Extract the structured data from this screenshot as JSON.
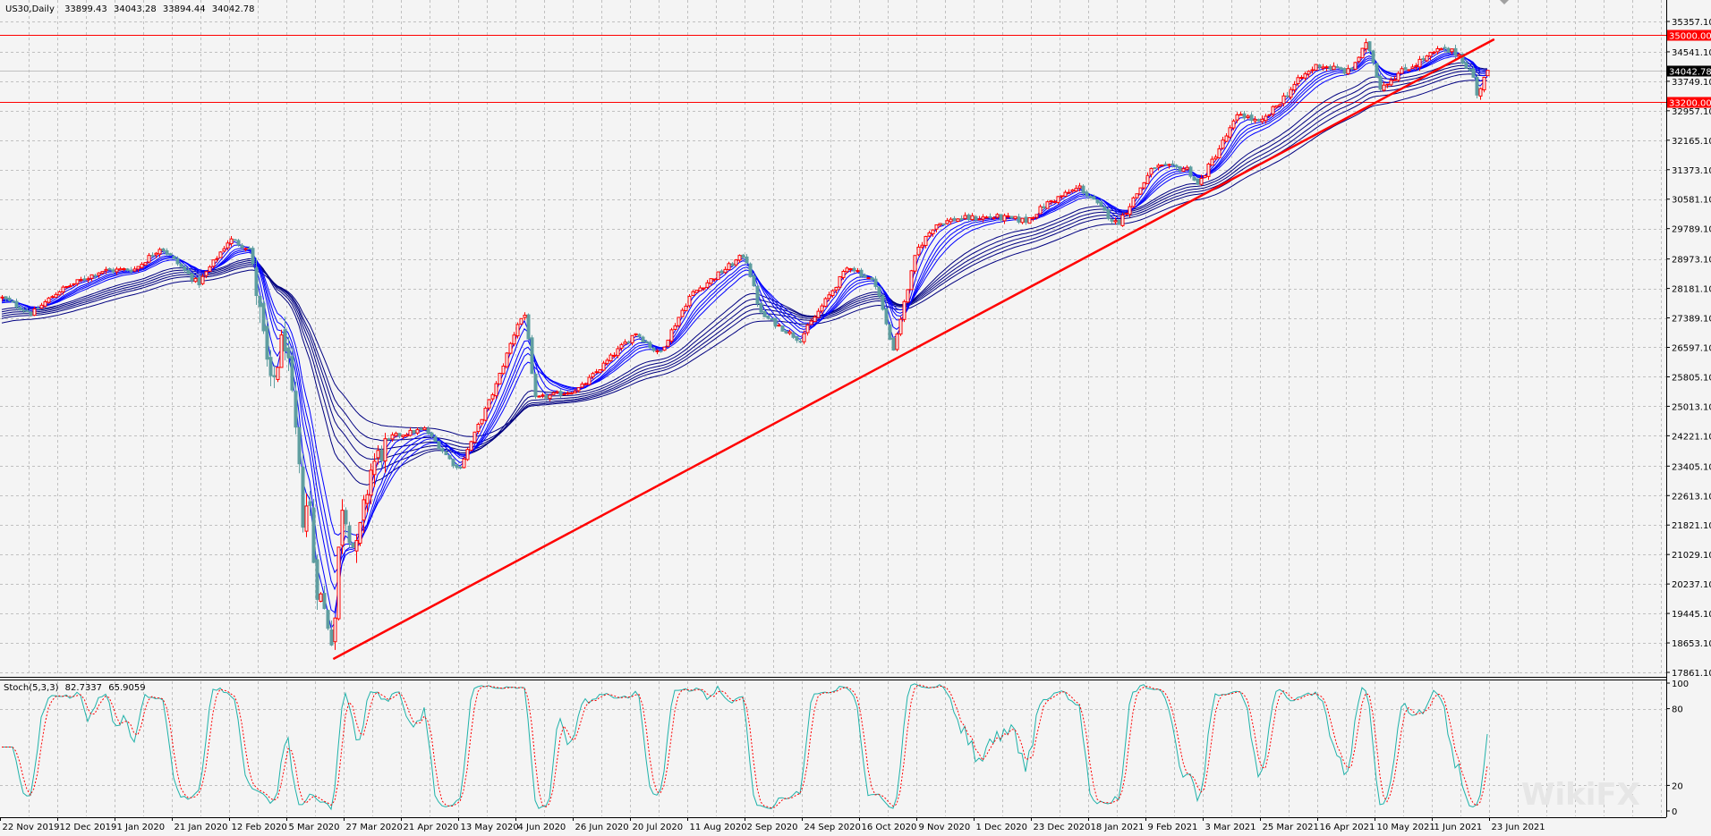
{
  "header": {
    "symbol_timeframe": "US30,Daily",
    "open": "33899.43",
    "high": "34043.28",
    "low": "33894.44",
    "close": "34042.78"
  },
  "stochastic": {
    "title": "Stoch(5,3,3)",
    "main_value": "82.7337",
    "signal_value": "65.9059",
    "levels": [
      100,
      80,
      20,
      0
    ],
    "main_color": "#20b2aa",
    "signal_color": "#ff0000"
  },
  "watermark": "WikiFX",
  "colors": {
    "background": "#f4f4f4",
    "grid": "#c0c0c0",
    "bull_candle": "#ff0000",
    "bear_candle": "#5f9ea0",
    "short_ma": "#0000ff",
    "long_ma": "#000080",
    "trendline": "#ff0000",
    "level_line": "#ff0000",
    "price_line": "#c0c0c0"
  },
  "chart_data": {
    "type": "candlestick",
    "title": "US30,Daily",
    "ylim": [
      17861.1,
      35357.1
    ],
    "grid": true,
    "y_ticks": [
      "35357.10",
      "34541.10",
      "33749.10",
      "32957.10",
      "32165.10",
      "31373.10",
      "30581.10",
      "29789.10",
      "28973.10",
      "28181.10",
      "27389.10",
      "26597.10",
      "25805.10",
      "25013.10",
      "24221.10",
      "23405.10",
      "22613.10",
      "21821.10",
      "21029.10",
      "20237.10",
      "19445.10",
      "18653.10",
      "17861.10"
    ],
    "x_ticks": [
      "22 Nov 2019",
      "12 Dec 2019",
      "1 Jan 2020",
      "21 Jan 2020",
      "12 Feb 2020",
      "5 Mar 2020",
      "27 Mar 2020",
      "21 Apr 2020",
      "13 May 2020",
      "4 Jun 2020",
      "26 Jun 2020",
      "20 Jul 2020",
      "11 Aug 2020",
      "2 Sep 2020",
      "24 Sep 2020",
      "16 Oct 2020",
      "9 Nov 2020",
      "1 Dec 2020",
      "23 Dec 2020",
      "18 Jan 2021",
      "9 Feb 2021",
      "3 Mar 2021",
      "25 Mar 2021",
      "16 Apr 2021",
      "10 May 2021",
      "1 Jun 2021",
      "23 Jun 2021"
    ],
    "approx_closes": [
      {
        "date": "22 Nov 2019",
        "close": 27950
      },
      {
        "date": "3 Dec 2019",
        "close": 27500
      },
      {
        "date": "12 Dec 2019",
        "close": 28100
      },
      {
        "date": "27 Dec 2019",
        "close": 28650
      },
      {
        "date": "8 Jan 2020",
        "close": 28700
      },
      {
        "date": "17 Jan 2020",
        "close": 29300
      },
      {
        "date": "31 Jan 2020",
        "close": 28300
      },
      {
        "date": "12 Feb 2020",
        "close": 29500
      },
      {
        "date": "20 Feb 2020",
        "close": 29250
      },
      {
        "date": "28 Feb 2020",
        "close": 25400
      },
      {
        "date": "4 Mar 2020",
        "close": 27000
      },
      {
        "date": "9 Mar 2020",
        "close": 23900
      },
      {
        "date": "12 Mar 2020",
        "close": 21300
      },
      {
        "date": "13 Mar 2020",
        "close": 23200
      },
      {
        "date": "16 Mar 2020",
        "close": 20200
      },
      {
        "date": "18 Mar 2020",
        "close": 19900
      },
      {
        "date": "23 Mar 2020",
        "close": 18600
      },
      {
        "date": "26 Mar 2020",
        "close": 22500
      },
      {
        "date": "1 Apr 2020",
        "close": 21000
      },
      {
        "date": "8 Apr 2020",
        "close": 23400
      },
      {
        "date": "17 Apr 2020",
        "close": 24200
      },
      {
        "date": "30 Apr 2020",
        "close": 24400
      },
      {
        "date": "13 May 2020",
        "close": 23300
      },
      {
        "date": "27 May 2020",
        "close": 25500
      },
      {
        "date": "5 Jun 2020",
        "close": 27300
      },
      {
        "date": "8 Jun 2020",
        "close": 27500
      },
      {
        "date": "11 Jun 2020",
        "close": 25200
      },
      {
        "date": "24 Jun 2020",
        "close": 25400
      },
      {
        "date": "29 Jun 2020",
        "close": 25500
      },
      {
        "date": "22 Jul 2020",
        "close": 27000
      },
      {
        "date": "31 Jul 2020",
        "close": 26400
      },
      {
        "date": "12 Aug 2020",
        "close": 28000
      },
      {
        "date": "2 Sep 2020",
        "close": 29100
      },
      {
        "date": "8 Sep 2020",
        "close": 27500
      },
      {
        "date": "23 Sep 2020",
        "close": 26800
      },
      {
        "date": "12 Oct 2020",
        "close": 28800
      },
      {
        "date": "23 Oct 2020",
        "close": 28300
      },
      {
        "date": "30 Oct 2020",
        "close": 26500
      },
      {
        "date": "9 Nov 2020",
        "close": 29200
      },
      {
        "date": "16 Nov 2020",
        "close": 29900
      },
      {
        "date": "24 Nov 2020",
        "close": 30050
      },
      {
        "date": "9 Dec 2020",
        "close": 30100
      },
      {
        "date": "21 Dec 2020",
        "close": 30000
      },
      {
        "date": "31 Dec 2020",
        "close": 30500
      },
      {
        "date": "14 Jan 2021",
        "close": 30900
      },
      {
        "date": "29 Jan 2021",
        "close": 29900
      },
      {
        "date": "12 Feb 2021",
        "close": 31450
      },
      {
        "date": "25 Feb 2021",
        "close": 31400
      },
      {
        "date": "1 Mar 2021",
        "close": 30950
      },
      {
        "date": "17 Mar 2021",
        "close": 32900
      },
      {
        "date": "25 Mar 2021",
        "close": 32600
      },
      {
        "date": "9 Apr 2021",
        "close": 33800
      },
      {
        "date": "16 Apr 2021",
        "close": 34200
      },
      {
        "date": "29 Apr 2021",
        "close": 34000
      },
      {
        "date": "7 May 2021",
        "close": 34780
      },
      {
        "date": "12 May 2021",
        "close": 33600
      },
      {
        "date": "20 May 2021",
        "close": 34000
      },
      {
        "date": "4 Jun 2021",
        "close": 34600
      },
      {
        "date": "11 Jun 2021",
        "close": 34500
      },
      {
        "date": "17 Jun 2021",
        "close": 33850
      },
      {
        "date": "18 Jun 2021",
        "close": 33300
      },
      {
        "date": "21 Jun 2021",
        "close": 33900
      },
      {
        "date": "23 Jun 2021",
        "close": 34042.78
      }
    ],
    "last_bar": {
      "open": 33899.43,
      "high": 34043.28,
      "low": 33894.44,
      "close": 34042.78
    },
    "ma_periods_short": [
      3,
      5,
      8,
      10,
      12,
      15
    ],
    "ma_periods_long": [
      30,
      35,
      40,
      45,
      50,
      60
    ],
    "horizontal_lines": [
      {
        "price": 35000.0,
        "label": "35000.00",
        "color": "#ff0000"
      },
      {
        "price": 33200.0,
        "label": "33200.00",
        "color": "#ff0000"
      }
    ],
    "current_price": {
      "price": 34042.78,
      "label": "34042.78"
    },
    "trendline": {
      "start": {
        "date": "23 Mar 2020",
        "price": 18220
      },
      "end": {
        "date": "25 Jun 2021",
        "price": 34880
      }
    }
  }
}
